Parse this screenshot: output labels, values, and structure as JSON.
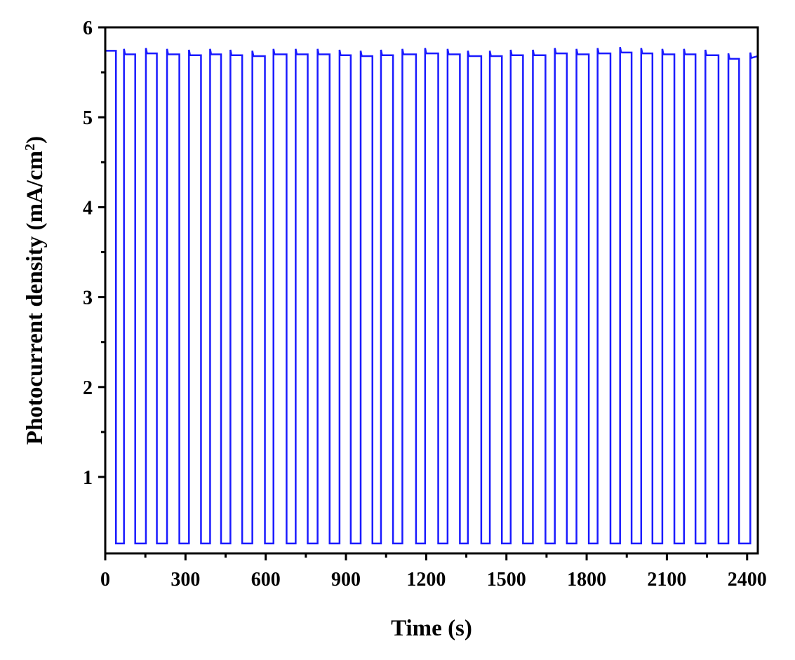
{
  "chart_data": {
    "type": "line",
    "title": "",
    "xlabel": "Time (s)",
    "ylabel_main": "Photocurrent density (mA/cm",
    "ylabel_sup": "2",
    "ylabel_tail": ")",
    "xlim": [
      0,
      2440
    ],
    "ylim": [
      0.15,
      6
    ],
    "x_ticks": [
      0,
      300,
      600,
      900,
      1200,
      1500,
      1800,
      2100,
      2400
    ],
    "x_tick_labels": [
      "0",
      "300",
      "600",
      "900",
      "1200",
      "1500",
      "1800",
      "2100",
      "2400"
    ],
    "y_ticks": [
      1,
      2,
      3,
      4,
      5,
      6
    ],
    "y_tick_labels": [
      "1",
      "2",
      "3",
      "4",
      "5",
      "6"
    ],
    "grid": false,
    "legend": "none",
    "series": [
      {
        "color": "#1a1aff",
        "description": "chopped-light on/off cycles",
        "dark_level": 0.26,
        "start_level": 5.74,
        "off_times": [
          40,
          112,
          193,
          277,
          358,
          433,
          512,
          597,
          678,
          757,
          839,
          918,
          999,
          1076,
          1162,
          1245,
          1326,
          1406,
          1483,
          1562,
          1646,
          1726,
          1808,
          1889,
          1968,
          2046,
          2128,
          2207,
          2293,
          2370
        ],
        "on_times": [
          70,
          152,
          231,
          313,
          392,
          468,
          550,
          629,
          712,
          794,
          876,
          955,
          1031,
          1111,
          1196,
          1280,
          1356,
          1438,
          1516,
          1599,
          1681,
          1762,
          1841,
          1925,
          2004,
          2083,
          2164,
          2244,
          2330,
          2412
        ],
        "on_levels": [
          5.7,
          5.71,
          5.7,
          5.69,
          5.7,
          5.69,
          5.68,
          5.7,
          5.7,
          5.7,
          5.69,
          5.68,
          5.69,
          5.7,
          5.71,
          5.7,
          5.68,
          5.68,
          5.69,
          5.69,
          5.71,
          5.7,
          5.71,
          5.72,
          5.71,
          5.7,
          5.7,
          5.69,
          5.65,
          5.66
        ]
      }
    ]
  }
}
